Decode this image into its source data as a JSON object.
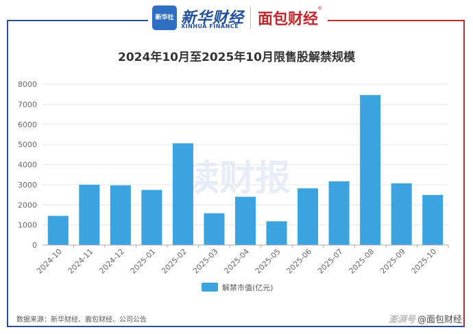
{
  "branding": {
    "xinhua_badge": "新华社",
    "xinhua_name_cn": "新华财经",
    "xinhua_name_en": "XINHUA FINANCE",
    "mianbao_name": "面包财经",
    "registered_mark": "®"
  },
  "watermark": "读财报",
  "source_text": "数据来源：新华财经、面包财经、公司公告",
  "credit": {
    "platform": "澎湃号",
    "author": "@面包财经"
  },
  "colors": {
    "bar": "#3ba3e0",
    "frame_left": "#2a4d8f",
    "frame_right": "#c0262c",
    "grid": "#e6e6e6"
  },
  "chart_data": {
    "type": "bar",
    "title": "2024年10月至2025年10月限售股解禁规模",
    "categories": [
      "2024-10",
      "2024-11",
      "2024-12",
      "2025-01",
      "2025-02",
      "2025-03",
      "2025-04",
      "2025-05",
      "2025-06",
      "2025-07",
      "2025-08",
      "2025-09",
      "2025-10"
    ],
    "series": [
      {
        "name": "解禁市值(亿元)",
        "values": [
          1450,
          3000,
          2970,
          2740,
          5060,
          1580,
          2400,
          1180,
          2820,
          3170,
          7460,
          3070,
          2490
        ]
      }
    ],
    "ylim": [
      0,
      8000
    ],
    "yticks": [
      "0",
      "1000",
      "2000",
      "3000",
      "4000",
      "5000",
      "6000",
      "7000",
      "8000"
    ],
    "grid": true,
    "legend_position": "bottom"
  }
}
